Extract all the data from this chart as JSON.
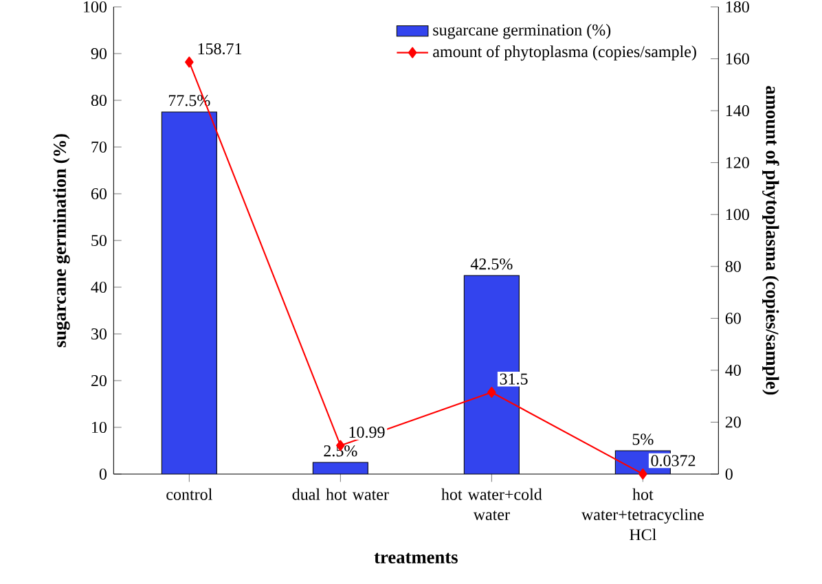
{
  "chart_data": {
    "type": "bar",
    "xlabel": "treatments",
    "ylabel": "sugarcane germination (%)",
    "y2label": "amount of phytoplasma (copies/sample)",
    "categories": [
      "control",
      "dual hot water",
      "hot water+cold water",
      "hot water+tetracycline HCl"
    ],
    "series": [
      {
        "name": "sugarcane germination (%)",
        "color": "#3344ee",
        "values": [
          77.5,
          2.5,
          42.5,
          5
        ],
        "value_labels": [
          "77.5%",
          "2.5%",
          "42.5%",
          "5%"
        ]
      },
      {
        "name": "amount of phytoplasma (copies/sample)",
        "type": "line",
        "axis": "y2",
        "color": "#ff0000",
        "marker": "diamond",
        "values": [
          158.71,
          10.99,
          31.5,
          0.0372
        ],
        "value_labels": [
          "158.71",
          "10.99",
          "31.5",
          "0.0372"
        ]
      }
    ],
    "ylim": [
      0,
      100
    ],
    "yticks": [
      0,
      10,
      20,
      30,
      40,
      50,
      60,
      70,
      80,
      90,
      100
    ],
    "y2lim": [
      0,
      180
    ],
    "y2ticks": [
      0,
      20,
      40,
      60,
      80,
      100,
      120,
      140,
      160,
      180
    ],
    "legend": "top right",
    "grid": false
  }
}
